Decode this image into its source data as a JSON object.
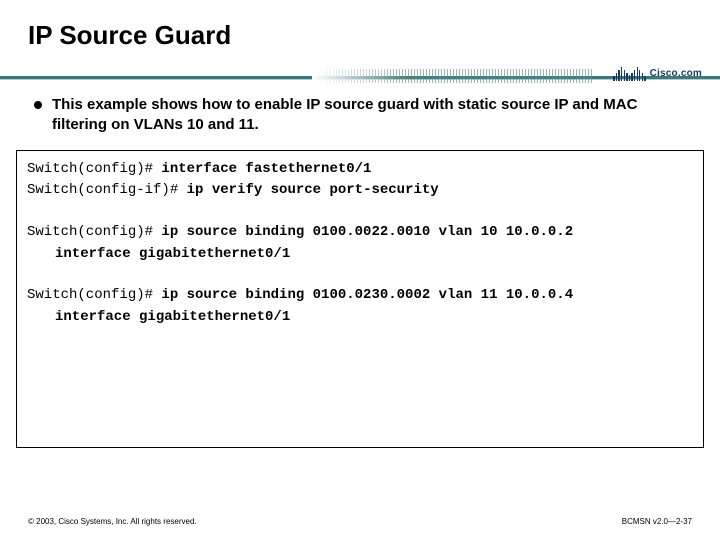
{
  "title": "IP Source Guard",
  "logo_text": "Cisco.com",
  "bullet": "This example shows how to enable IP source guard with static source IP and MAC filtering on VLANs 10 and 11.",
  "code": {
    "l1_prompt": "Switch(config)# ",
    "l1_cmd": "interface fastethernet0/1",
    "l2_prompt": "Switch(config-if)# ",
    "l2_cmd": "ip verify source port-security",
    "l3_prompt": "Switch(config)# ",
    "l3_cmd": "ip source binding 0100.0022.0010 vlan 10 10.0.0.2",
    "l3_cont": "interface gigabitethernet0/1",
    "l4_prompt": "Switch(config)# ",
    "l4_cmd": "ip source binding 0100.0230.0002 vlan 11 10.0.0.4",
    "l4_cont": "interface gigabitethernet0/1"
  },
  "footer_left": "© 2003, Cisco Systems, Inc. All rights reserved.",
  "footer_right": "BCMSN v2.0—2-37",
  "colors": {
    "divider": "#3b7a7a",
    "logo": "#1a3a5c",
    "background": "#ffffff",
    "text": "#000000"
  },
  "cisco_bar_heights": [
    5,
    8,
    11,
    14,
    11,
    8,
    6,
    8,
    11,
    14,
    11,
    8,
    5
  ]
}
